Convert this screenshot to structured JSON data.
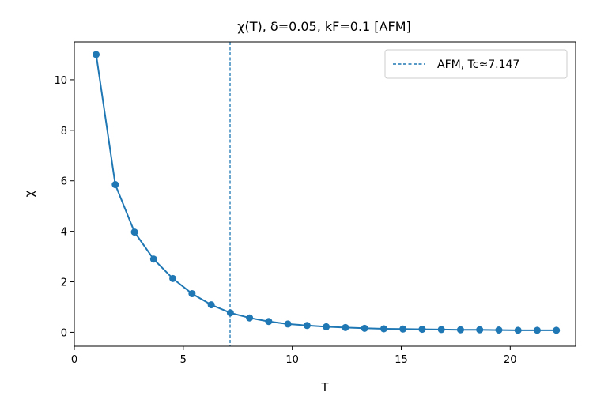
{
  "chart_data": {
    "type": "line",
    "title": "χ(T), δ=0.05, kF=0.1  [AFM]",
    "xlabel": "T",
    "ylabel": "χ",
    "xlim": [
      0,
      23
    ],
    "ylim": [
      -0.55,
      11.5
    ],
    "xticks": [
      0,
      5,
      10,
      15,
      20
    ],
    "yticks": [
      0,
      2,
      4,
      6,
      8,
      10
    ],
    "grid": false,
    "legend_position": "top-right",
    "series": [
      {
        "color": "#1f77b4",
        "marker": "circle",
        "x": [
          1.0,
          1.88,
          2.76,
          3.64,
          4.52,
          5.4,
          6.28,
          7.16,
          8.04,
          8.92,
          9.8,
          10.68,
          11.56,
          12.44,
          13.32,
          14.2,
          15.08,
          15.96,
          16.84,
          17.72,
          18.6,
          19.48,
          20.36,
          21.24,
          22.12
        ],
        "y": [
          11.0,
          5.85,
          3.97,
          2.9,
          2.13,
          1.53,
          1.09,
          0.77,
          0.57,
          0.43,
          0.33,
          0.27,
          0.22,
          0.19,
          0.16,
          0.14,
          0.13,
          0.12,
          0.11,
          0.1,
          0.1,
          0.09,
          0.08,
          0.08,
          0.08
        ]
      }
    ],
    "vlines": [
      {
        "name": "AFM, Tc≈7.147",
        "x": 7.147,
        "color": "#1f77b4",
        "style": "dashed"
      }
    ]
  }
}
